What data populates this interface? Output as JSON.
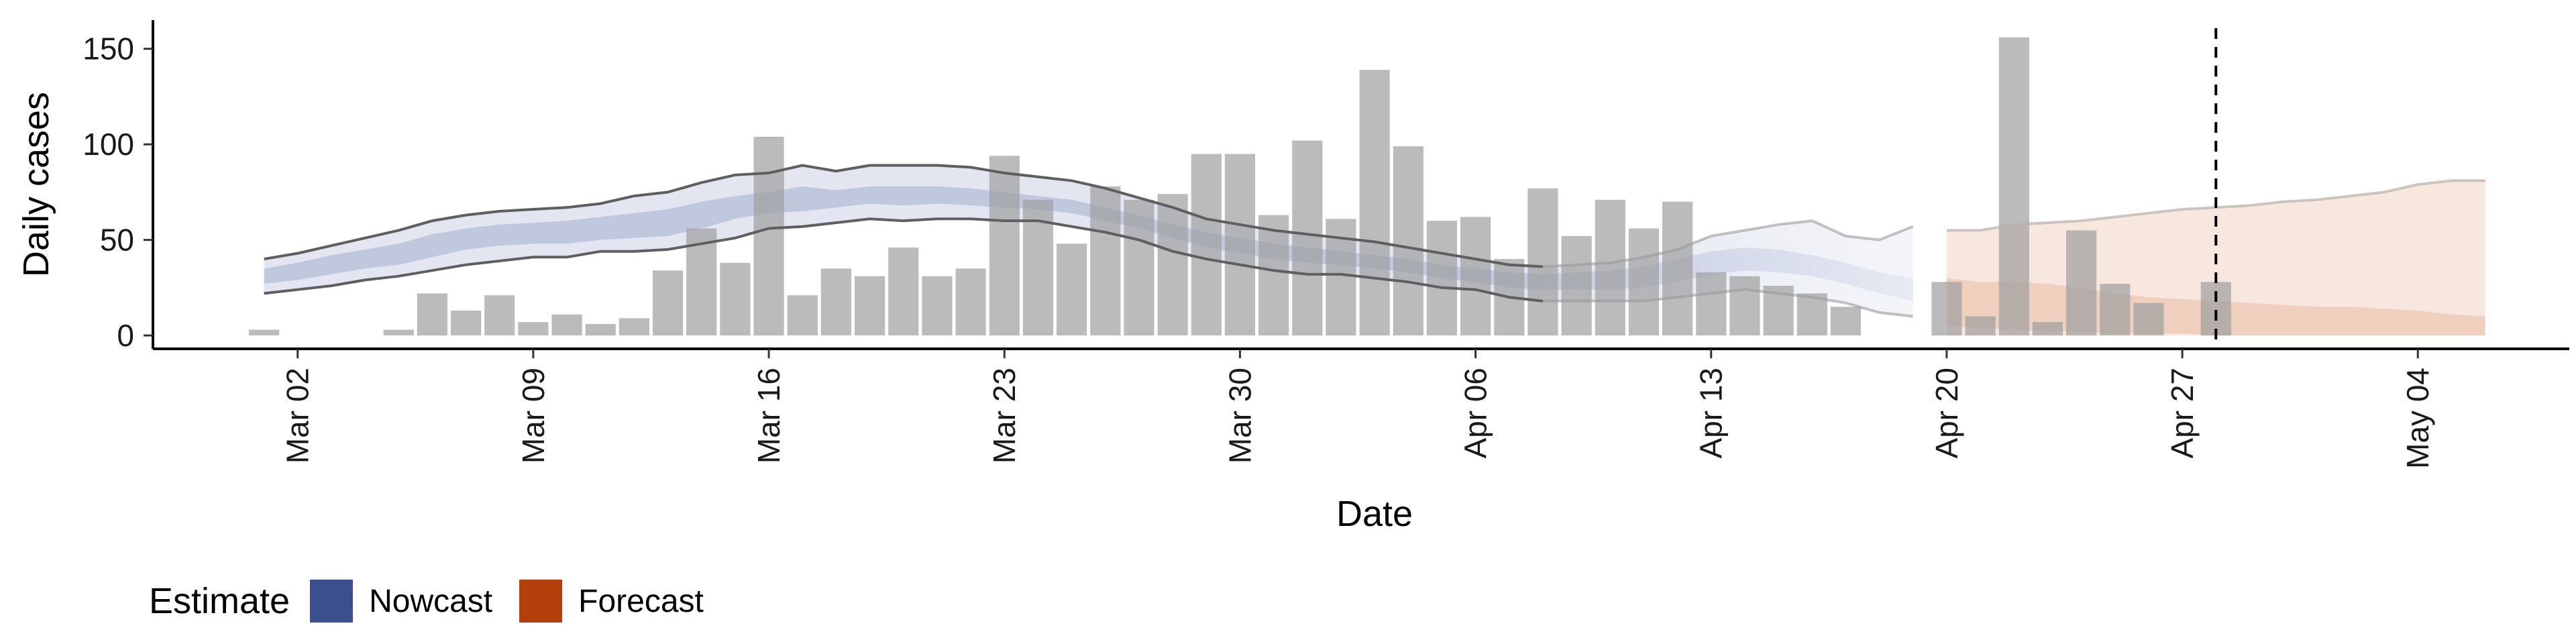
{
  "chart_data": {
    "type": "bar",
    "xlabel": "Date",
    "ylabel": "Daily cases",
    "ylim": [
      -7,
      165
    ],
    "yticks": [
      0,
      50,
      100,
      150
    ],
    "xlim": [
      -3.3,
      68.5
    ],
    "x_tick_positions": [
      1,
      8,
      15,
      22,
      29,
      36,
      43,
      50,
      57,
      64
    ],
    "x_tick_labels": [
      "Mar 02",
      "Mar 09",
      "Mar 16",
      "Mar 23",
      "Mar 30",
      "Apr 06",
      "Apr 13",
      "Apr 20",
      "Apr 27",
      "May 04"
    ],
    "date_axis_start": "2020-03-01",
    "vline_day": 58,
    "bars": {
      "start_day": 0,
      "values": [
        3,
        0,
        0,
        0,
        3,
        22,
        13,
        21,
        7,
        11,
        6,
        9,
        34,
        56,
        38,
        104,
        21,
        35,
        31,
        46,
        31,
        35,
        94,
        71,
        48,
        78,
        71,
        74,
        95,
        95,
        63,
        102,
        61,
        139,
        99,
        60,
        62,
        40,
        77,
        52,
        71,
        56,
        70,
        33,
        31,
        26,
        22,
        15,
        0,
        0,
        28,
        10,
        156,
        7,
        55,
        27,
        17,
        0,
        28
      ],
      "color": "#9e9e9e"
    },
    "nowcast": {
      "name": "Nowcast",
      "color": "#3b4f8c",
      "start_day": 0,
      "outer_low": [
        22,
        24,
        26,
        29,
        31,
        34,
        37,
        39,
        41,
        41,
        44,
        44,
        45,
        48,
        51,
        56,
        57,
        59,
        61,
        60,
        61,
        61,
        60,
        60,
        57,
        54,
        50,
        44,
        40,
        37,
        34,
        32,
        32,
        30,
        28,
        25,
        24,
        20,
        18,
        18,
        18,
        18,
        20,
        22,
        24,
        22,
        20,
        17,
        12,
        10
      ],
      "outer_high": [
        40,
        43,
        47,
        51,
        55,
        60,
        63,
        65,
        66,
        67,
        69,
        73,
        75,
        80,
        84,
        85,
        89,
        86,
        89,
        89,
        89,
        88,
        85,
        83,
        81,
        77,
        72,
        67,
        61,
        58,
        55,
        53,
        51,
        49,
        46,
        43,
        40,
        37,
        36,
        37,
        38,
        41,
        45,
        52,
        55,
        58,
        60,
        52,
        50,
        57
      ],
      "inner_low": [
        27,
        29,
        32,
        35,
        37,
        41,
        45,
        47,
        48,
        48,
        50,
        51,
        52,
        56,
        61,
        64,
        65,
        67,
        69,
        68,
        69,
        68,
        67,
        66,
        64,
        60,
        56,
        51,
        46,
        43,
        40,
        38,
        37,
        35,
        33,
        30,
        28,
        25,
        24,
        24,
        24,
        25,
        28,
        32,
        34,
        33,
        31,
        27,
        22,
        18
      ],
      "inner_high": [
        35,
        38,
        42,
        45,
        48,
        53,
        56,
        58,
        59,
        60,
        62,
        64,
        66,
        70,
        73,
        75,
        78,
        76,
        78,
        78,
        78,
        77,
        75,
        73,
        71,
        67,
        63,
        58,
        54,
        51,
        48,
        46,
        44,
        42,
        40,
        37,
        35,
        33,
        32,
        33,
        34,
        36,
        40,
        44,
        46,
        45,
        42,
        38,
        33,
        30
      ]
    },
    "forecast": {
      "name": "Forecast",
      "color": "#b33f0a",
      "start_day": 50,
      "outer_low": [
        0,
        0,
        0,
        0,
        0,
        0,
        0,
        0,
        0,
        0,
        0,
        0,
        0,
        0,
        0,
        0,
        0
      ],
      "outer_high": [
        55,
        55,
        58,
        59,
        60,
        62,
        64,
        66,
        67,
        68,
        70,
        71,
        73,
        75,
        79,
        81,
        81
      ],
      "inner_low": [
        5,
        4,
        3,
        2,
        2,
        1,
        1,
        1,
        0,
        0,
        0,
        0,
        0,
        0,
        0,
        0,
        0
      ],
      "inner_high": [
        30,
        28,
        28,
        27,
        25,
        22,
        20,
        19,
        18,
        17,
        16,
        15,
        15,
        14,
        13,
        11,
        10
      ]
    },
    "legend": {
      "title": "Estimate",
      "placement": "bottom-left",
      "entries": [
        {
          "label": "Nowcast",
          "color": "#3b4f8c"
        },
        {
          "label": "Forecast",
          "color": "#b33f0a"
        }
      ]
    },
    "grid": false
  }
}
